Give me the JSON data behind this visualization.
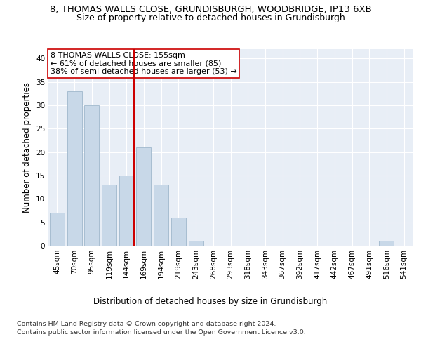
{
  "title_line1": "8, THOMAS WALLS CLOSE, GRUNDISBURGH, WOODBRIDGE, IP13 6XB",
  "title_line2": "Size of property relative to detached houses in Grundisburgh",
  "xlabel": "Distribution of detached houses by size in Grundisburgh",
  "ylabel": "Number of detached properties",
  "categories": [
    "45sqm",
    "70sqm",
    "95sqm",
    "119sqm",
    "144sqm",
    "169sqm",
    "194sqm",
    "219sqm",
    "243sqm",
    "268sqm",
    "293sqm",
    "318sqm",
    "343sqm",
    "367sqm",
    "392sqm",
    "417sqm",
    "442sqm",
    "467sqm",
    "491sqm",
    "516sqm",
    "541sqm"
  ],
  "values": [
    7,
    33,
    30,
    13,
    15,
    21,
    13,
    6,
    1,
    0,
    0,
    0,
    0,
    0,
    0,
    0,
    0,
    0,
    0,
    1,
    0
  ],
  "bar_color": "#c8d8e8",
  "bar_edgecolor": "#a0b8cc",
  "vline_color": "#cc0000",
  "annotation_text": "8 THOMAS WALLS CLOSE: 155sqm\n← 61% of detached houses are smaller (85)\n38% of semi-detached houses are larger (53) →",
  "annotation_box_color": "#ffffff",
  "annotation_box_edgecolor": "#cc0000",
  "ylim": [
    0,
    42
  ],
  "yticks": [
    0,
    5,
    10,
    15,
    20,
    25,
    30,
    35,
    40
  ],
  "bg_color": "#e8eef6",
  "footer_line1": "Contains HM Land Registry data © Crown copyright and database right 2024.",
  "footer_line2": "Contains public sector information licensed under the Open Government Licence v3.0.",
  "title_fontsize": 9.5,
  "subtitle_fontsize": 9,
  "xlabel_fontsize": 8.5,
  "ylabel_fontsize": 8.5,
  "annotation_fontsize": 8,
  "tick_fontsize": 7.5,
  "footer_fontsize": 6.8
}
